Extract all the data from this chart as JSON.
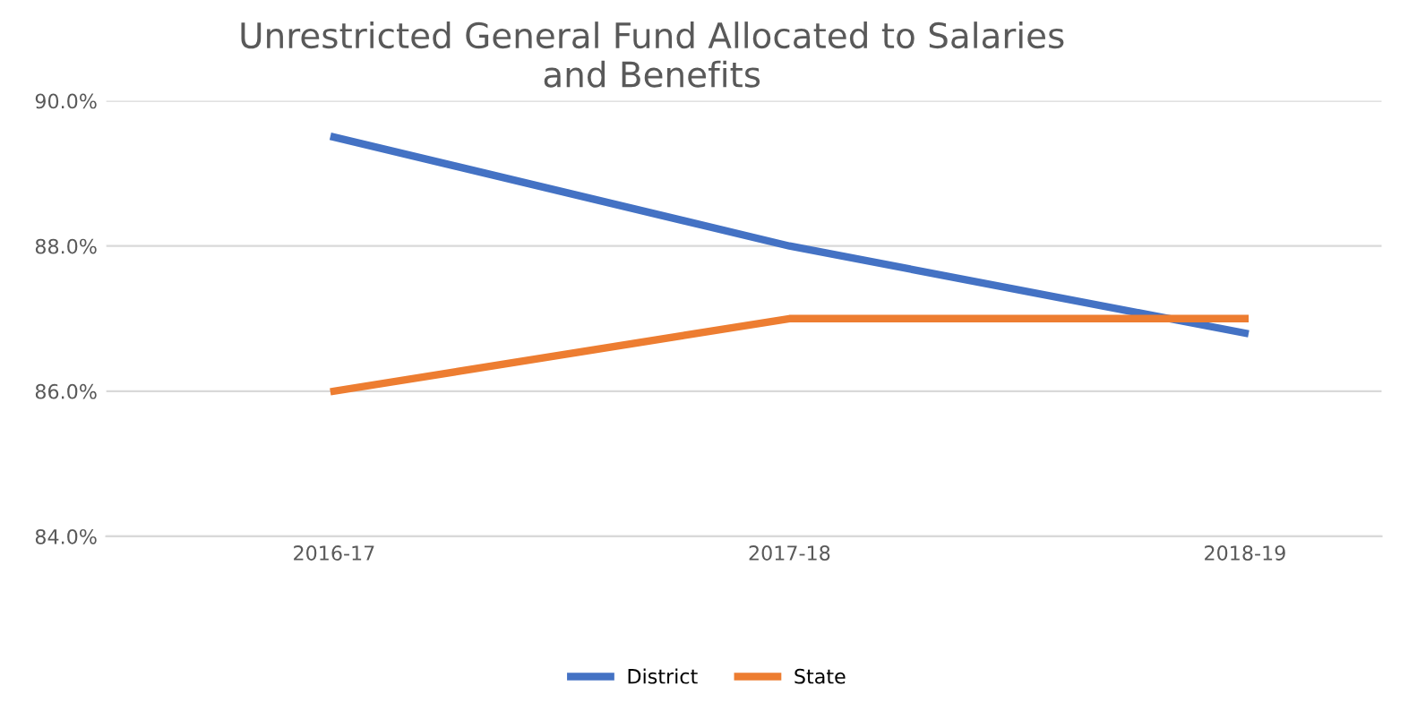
{
  "chart_data": {
    "type": "line",
    "title": "Unrestricted General Fund Allocated to Salaries\nand Benefits",
    "categories": [
      "2016-17",
      "2017-18",
      "2018-19"
    ],
    "series": [
      {
        "name": "District",
        "color": "#4472c4",
        "values": [
          89.5,
          88.0,
          86.8
        ]
      },
      {
        "name": "State",
        "color": "#ed7d31",
        "values": [
          86.0,
          87.0,
          87.0
        ]
      }
    ],
    "ylim": [
      84,
      90
    ],
    "yticks": [
      {
        "value": 84,
        "label": "84.0%"
      },
      {
        "value": 86,
        "label": "86.0%"
      },
      {
        "value": 88,
        "label": "88.0%"
      },
      {
        "value": 90,
        "label": "90.0%"
      }
    ],
    "grid": "y",
    "legend": "bottom",
    "marker": "none",
    "line_style": "solid"
  }
}
